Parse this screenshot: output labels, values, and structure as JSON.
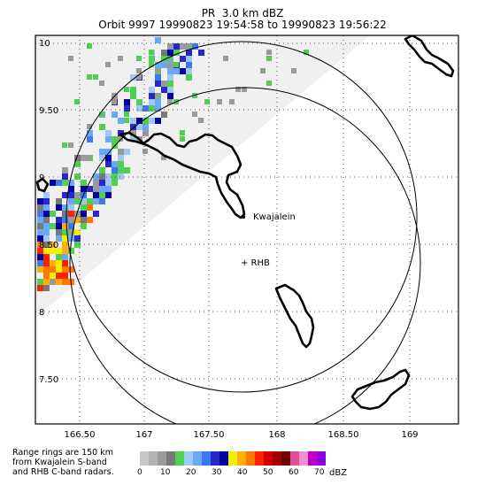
{
  "header": {
    "line1": "PR  3.0 km dBZ",
    "line2": "Orbit 9997 19990823 19:54:58 to 19990823 19:56:22"
  },
  "lat_labels": [
    "10",
    "9.50",
    "9",
    "8.50",
    "8",
    "7.50"
  ],
  "lon_labels": [
    "166.50",
    "167",
    "167.50",
    "168",
    "168.50",
    "169"
  ],
  "map_labels": {
    "kwajalein": "Kwajalein",
    "rhb": "+ RHB"
  },
  "footnote": [
    "Range rings are 150 km",
    "from Kwajalein S-band",
    "and RHB C-band radars."
  ],
  "colorbar": {
    "unit": "dBZ",
    "tick_labels": [
      "0",
      "10",
      "20",
      "30",
      "40",
      "50",
      "60",
      "70"
    ],
    "colors": [
      "#c8c8c8",
      "#b4b4b4",
      "#9a9a9a",
      "#787878",
      "#50d050",
      "#a0c8f0",
      "#6aa8f8",
      "#3c78f0",
      "#2828c8",
      "#0000a0",
      "#f0f000",
      "#ffb000",
      "#ff7800",
      "#ff2000",
      "#d00000",
      "#a00000",
      "#700000",
      "#e05090",
      "#f090d0",
      "#c000c0",
      "#9000e0"
    ]
  },
  "palette": {
    "swath": "#f0f0f0",
    "coast": "#000000",
    "grid": "#555555"
  }
}
